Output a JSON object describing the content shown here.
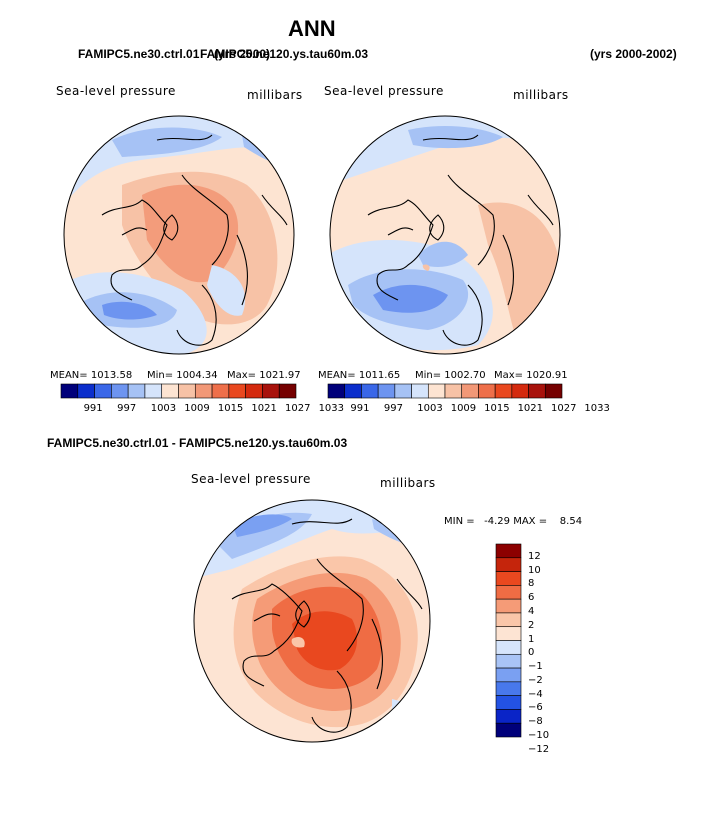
{
  "title": "ANN",
  "colors": {
    "abs_scale": [
      "#00007a",
      "#0b2ecc",
      "#3a67e8",
      "#6d94f0",
      "#a6c2f5",
      "#d5e4fb",
      "#fde4d2",
      "#f7c2a6",
      "#f29877",
      "#ee6f4a",
      "#e9481f",
      "#d42a0e",
      "#a8120c",
      "#750000"
    ],
    "diff_scale": [
      "#00007a",
      "#0a24c7",
      "#2352e3",
      "#4878ec",
      "#7aa0f2",
      "#a9c4f6",
      "#d6e5fc",
      "#fde4d3",
      "#fac6a9",
      "#f59b77",
      "#ef6c44",
      "#e9481f",
      "#c5250c",
      "#8c0000"
    ]
  },
  "panels": {
    "left": {
      "case": "FAMIPC5.ne30.ctrl.01",
      "years": "(yrs 2000)",
      "variable": "Sea-level pressure",
      "units": "millibars",
      "mean_label": "MEAN= 1013.58",
      "min_label": "Min= 1004.34",
      "max_label": "Max= 1021.97",
      "ticks": [
        "991",
        "997",
        "1003",
        "1009",
        "1015",
        "1021",
        "1027",
        "1033"
      ]
    },
    "right": {
      "case": "FAMIPC5.ne120.ys.tau60m.03",
      "years": "(yrs 2000-2002)",
      "variable": "Sea-level pressure",
      "units": "millibars",
      "mean_label": "MEAN= 1011.65",
      "min_label": "Min= 1002.70",
      "max_label": "Max= 1020.91",
      "ticks": [
        "991",
        "997",
        "1003",
        "1009",
        "1015",
        "1021",
        "1027",
        "1033"
      ]
    },
    "diff": {
      "title": "FAMIPC5.ne30.ctrl.01 - FAMIPC5.ne120.ys.tau60m.03",
      "variable": "Sea-level pressure",
      "units": "millibars",
      "minmax_label": "MIN =   -4.29 MAX =    8.54",
      "ticks": [
        "12",
        "10",
        "8",
        "6",
        "4",
        "2",
        "1",
        "0",
        "−1",
        "−2",
        "−4",
        "−6",
        "−8",
        "−10",
        "−12"
      ]
    }
  }
}
